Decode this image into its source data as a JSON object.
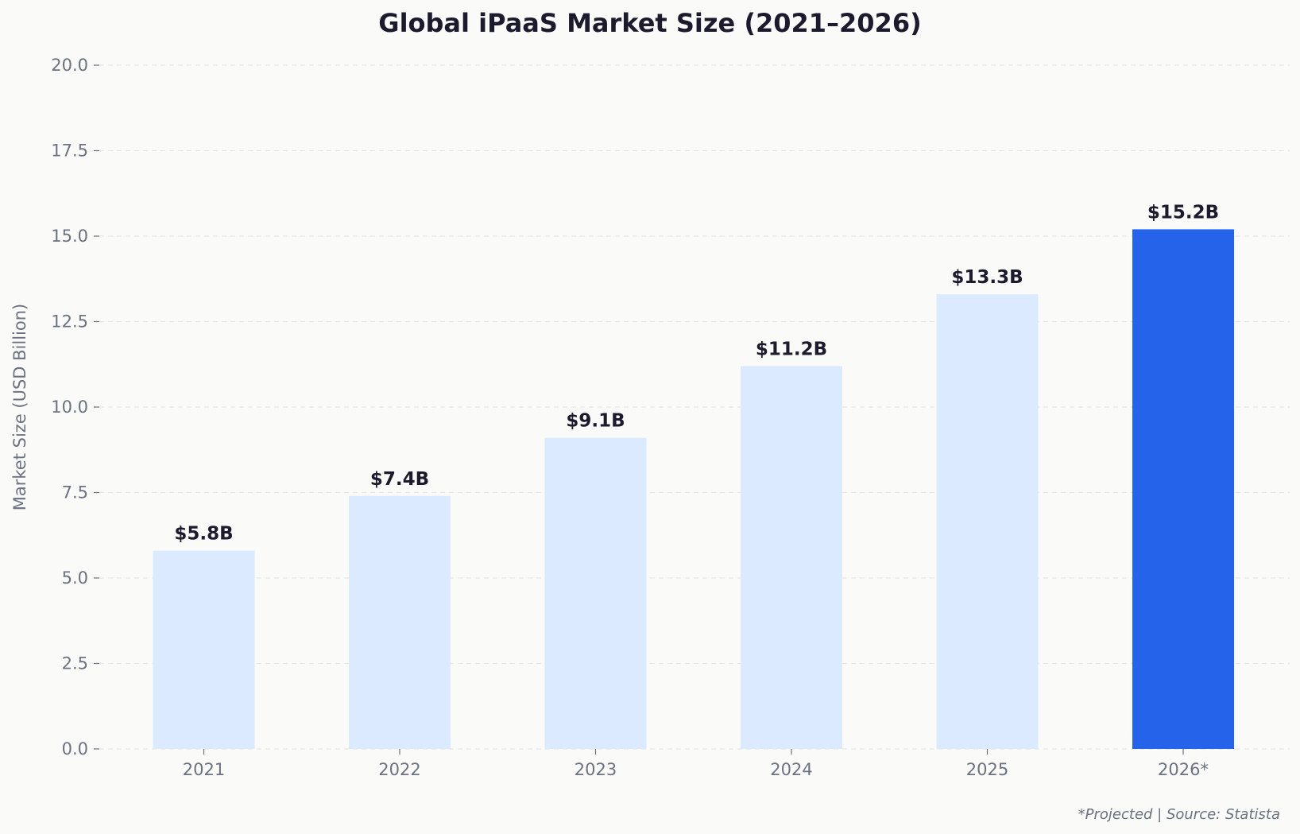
{
  "chart_data": {
    "type": "bar",
    "title": "Global iPaaS Market Size (2021–2026)",
    "xlabel": "",
    "ylabel": "Market Size (USD Billion)",
    "categories": [
      "2021",
      "2022",
      "2023",
      "2024",
      "2025",
      "2026*"
    ],
    "values": [
      5.8,
      7.4,
      9.1,
      11.2,
      13.3,
      15.2
    ],
    "data_labels": [
      "$5.8B",
      "$7.4B",
      "$9.1B",
      "$11.2B",
      "$13.3B",
      "$15.2B"
    ],
    "ylim": [
      0,
      20
    ],
    "yticks": [
      "0.0",
      "2.5",
      "5.0",
      "7.5",
      "10.0",
      "12.5",
      "15.0",
      "17.5",
      "20.0"
    ],
    "grid": true,
    "legend": "none",
    "colors": {
      "default_bar": "#dbeafe",
      "highlight_bar": "#2563eb",
      "highlight_category": "2026*"
    },
    "footnote": "*Projected  |  Source: Statista"
  }
}
